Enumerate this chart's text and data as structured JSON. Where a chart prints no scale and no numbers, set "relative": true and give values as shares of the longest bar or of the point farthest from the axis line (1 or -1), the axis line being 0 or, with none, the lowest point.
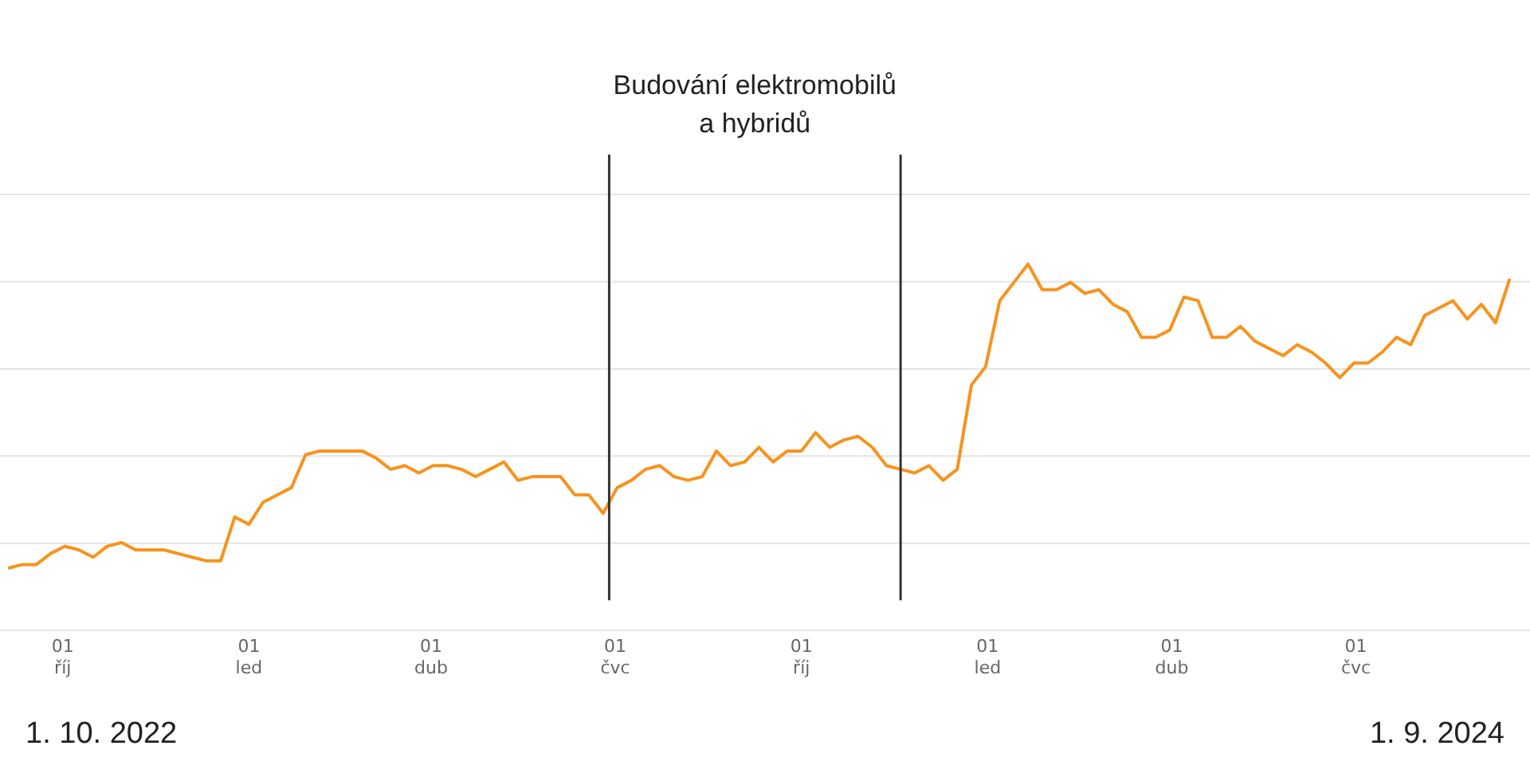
{
  "chart_data": {
    "type": "line",
    "relative": true,
    "grid": "y",
    "legend": false,
    "marker": "none",
    "line_style": "solid",
    "xlim": [
      "2022-08-31",
      "2024-09-25"
    ],
    "xticks": [
      {
        "value": "2022-10-01",
        "label": "01 říj"
      },
      {
        "value": "2023-01-01",
        "label": "01 led"
      },
      {
        "value": "2023-04-01",
        "label": "01 dub"
      },
      {
        "value": "2023-07-01",
        "label": "01 čvc"
      },
      {
        "value": "2023-10-01",
        "label": "01 říj"
      },
      {
        "value": "2024-01-01",
        "label": "01 led"
      },
      {
        "value": "2024-04-01",
        "label": "01 dub"
      },
      {
        "value": "2024-07-01",
        "label": "01 čvc"
      }
    ],
    "x": [
      "2022-09-04",
      "2022-09-11",
      "2022-09-18",
      "2022-09-25",
      "2022-10-02",
      "2022-10-09",
      "2022-10-16",
      "2022-10-23",
      "2022-10-30",
      "2022-11-06",
      "2022-11-13",
      "2022-11-20",
      "2022-11-27",
      "2022-12-04",
      "2022-12-11",
      "2022-12-18",
      "2022-12-25",
      "2023-01-01",
      "2023-01-08",
      "2023-01-15",
      "2023-01-22",
      "2023-01-29",
      "2023-02-05",
      "2023-02-12",
      "2023-02-19",
      "2023-02-26",
      "2023-03-05",
      "2023-03-12",
      "2023-03-19",
      "2023-03-26",
      "2023-04-02",
      "2023-04-09",
      "2023-04-16",
      "2023-04-23",
      "2023-04-30",
      "2023-05-07",
      "2023-05-14",
      "2023-05-21",
      "2023-05-28",
      "2023-06-04",
      "2023-06-11",
      "2023-06-18",
      "2023-06-25",
      "2023-07-02",
      "2023-07-09",
      "2023-07-16",
      "2023-07-23",
      "2023-07-30",
      "2023-08-06",
      "2023-08-13",
      "2023-08-20",
      "2023-08-27",
      "2023-09-03",
      "2023-09-10",
      "2023-09-17",
      "2023-09-24",
      "2023-10-01",
      "2023-10-08",
      "2023-10-15",
      "2023-10-22",
      "2023-10-29",
      "2023-11-05",
      "2023-11-12",
      "2023-11-19",
      "2023-11-26",
      "2023-12-03",
      "2023-12-10",
      "2023-12-17",
      "2023-12-24",
      "2023-12-31",
      "2024-01-07",
      "2024-01-14",
      "2024-01-21",
      "2024-01-28",
      "2024-02-04",
      "2024-02-11",
      "2024-02-18",
      "2024-02-25",
      "2024-03-03",
      "2024-03-10",
      "2024-03-17",
      "2024-03-24",
      "2024-03-31",
      "2024-04-07",
      "2024-04-14",
      "2024-04-21",
      "2024-04-28",
      "2024-05-05",
      "2024-05-12",
      "2024-05-19",
      "2024-05-26",
      "2024-06-02",
      "2024-06-09",
      "2024-06-16",
      "2024-06-23",
      "2024-06-30",
      "2024-07-07",
      "2024-07-14",
      "2024-07-21",
      "2024-07-28",
      "2024-08-04",
      "2024-08-11",
      "2024-08-18",
      "2024-08-25",
      "2024-09-01",
      "2024-09-08",
      "2024-09-15"
    ],
    "series": [
      {
        "color": "#f7931e",
        "values": [
          0.17,
          0.18,
          0.18,
          0.21,
          0.23,
          0.22,
          0.2,
          0.23,
          0.24,
          0.22,
          0.22,
          0.22,
          0.21,
          0.2,
          0.19,
          0.19,
          0.31,
          0.29,
          0.35,
          0.37,
          0.39,
          0.48,
          0.49,
          0.49,
          0.49,
          0.49,
          0.47,
          0.44,
          0.45,
          0.43,
          0.45,
          0.45,
          0.44,
          0.42,
          0.44,
          0.46,
          0.41,
          0.42,
          0.42,
          0.42,
          0.37,
          0.37,
          0.32,
          0.39,
          0.41,
          0.44,
          0.45,
          0.42,
          0.41,
          0.42,
          0.49,
          0.45,
          0.46,
          0.5,
          0.46,
          0.49,
          0.49,
          0.54,
          0.5,
          0.52,
          0.53,
          0.5,
          0.45,
          0.44,
          0.43,
          0.45,
          0.41,
          0.44,
          0.67,
          0.72,
          0.9,
          0.95,
          1.0,
          0.93,
          0.93,
          0.95,
          0.92,
          0.93,
          0.89,
          0.87,
          0.8,
          0.8,
          0.82,
          0.91,
          0.9,
          0.8,
          0.8,
          0.83,
          0.79,
          0.77,
          0.75,
          0.78,
          0.76,
          0.73,
          0.69,
          0.73,
          0.73,
          0.76,
          0.8,
          0.78,
          0.86,
          0.88,
          0.9,
          0.85,
          0.89,
          0.84,
          0.96
        ]
      }
    ],
    "ref_lines": [
      {
        "axis": "x",
        "value": "2023-06-28",
        "label": null,
        "color": "#333333"
      },
      {
        "axis": "x",
        "value": "2023-11-19",
        "label": null,
        "color": "#333333"
      }
    ],
    "annotations": [
      "Budování elektromobilů a hybridů",
      "1. 10. 2022",
      "1. 9. 2024"
    ]
  }
}
